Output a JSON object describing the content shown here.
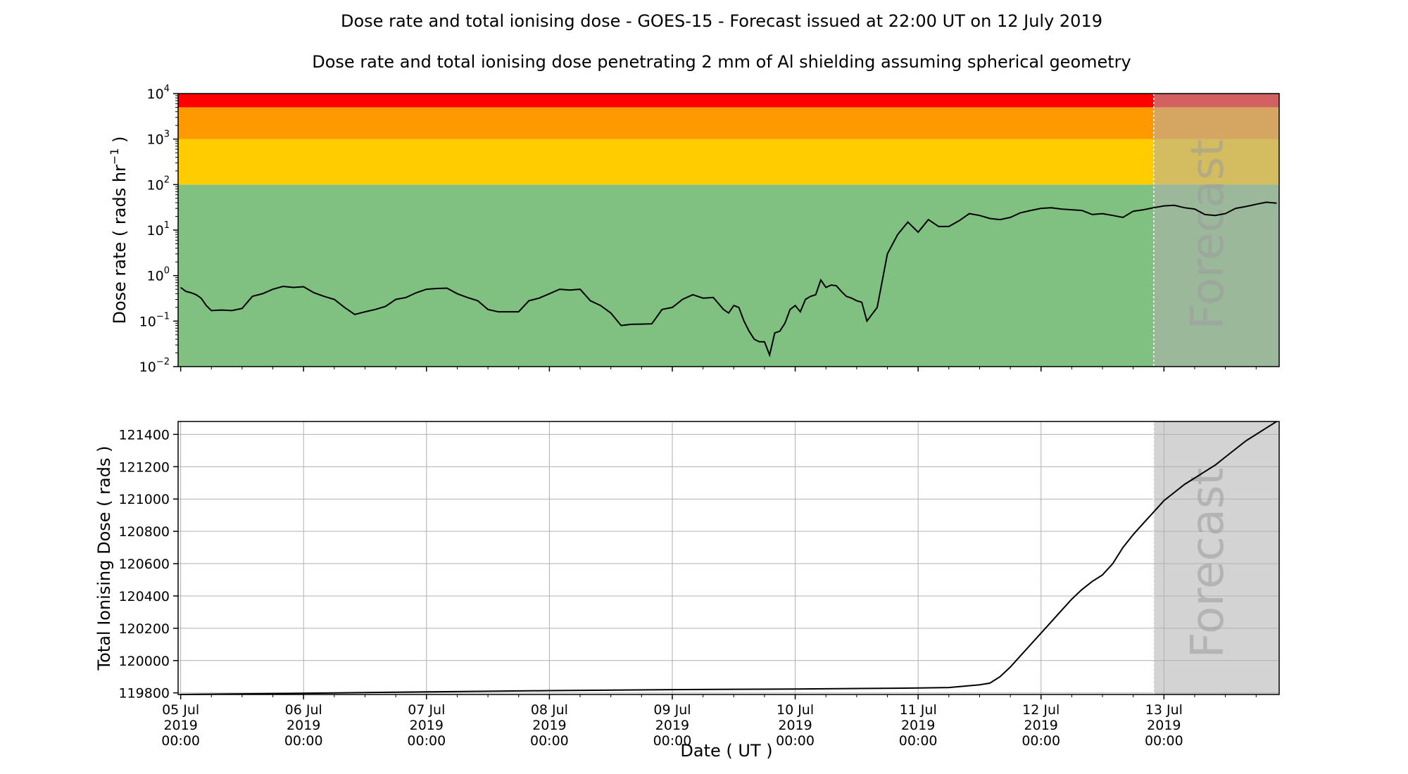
{
  "title": "Dose rate and total ionising dose - GOES-15 - Forecast issued at 22:00 UT on 12 July 2019",
  "subtitle": "Dose rate and total ionising dose penetrating 2 mm of Al shielding assuming spherical geometry",
  "forecast_label": "Forecast",
  "colors": {
    "green_band": "#80c080",
    "yellow_band": "#ffcc00",
    "orange_band": "#ff9900",
    "red_band": "#ff0000",
    "forecast_grey": "#d3d3d3",
    "line": "#000000",
    "grid": "#b0b0b0"
  },
  "chart_data": [
    {
      "type": "line",
      "name": "dose-rate",
      "ylabel_parts": [
        "Dose rate ( rads hr",
        "−1",
        " )"
      ],
      "yscale": "log",
      "ylim": [
        0.01,
        10000
      ],
      "yticks": [
        {
          "base": "10",
          "exp": "−2",
          "value": 0.01
        },
        {
          "base": "10",
          "exp": "−1",
          "value": 0.1
        },
        {
          "base": "10",
          "exp": "0",
          "value": 1
        },
        {
          "base": "10",
          "exp": "1",
          "value": 10
        },
        {
          "base": "10",
          "exp": "2",
          "value": 100
        },
        {
          "base": "10",
          "exp": "3",
          "value": 1000
        },
        {
          "base": "10",
          "exp": "4",
          "value": 10000
        }
      ],
      "bands": [
        {
          "from": 0.01,
          "to": 100,
          "color": "#80c080"
        },
        {
          "from": 100,
          "to": 1000,
          "color": "#ffcc00"
        },
        {
          "from": 1000,
          "to": 5000,
          "color": "#ff9900"
        },
        {
          "from": 5000,
          "to": 10000,
          "color": "#ff0000"
        }
      ],
      "x_hours_since_05jul": [
        0,
        1,
        2,
        3,
        4,
        5,
        6,
        8,
        10,
        12,
        14,
        16,
        18,
        20,
        22,
        24,
        26,
        28,
        30,
        32,
        34,
        36,
        38,
        40,
        42,
        44,
        46,
        48,
        50,
        52,
        54,
        56,
        58,
        60,
        62,
        64,
        66,
        68,
        70,
        72,
        74,
        76,
        78,
        80,
        82,
        84,
        86,
        88,
        90,
        92,
        94,
        96,
        98,
        100,
        102,
        104,
        106,
        107,
        108,
        109,
        110,
        111,
        112,
        113,
        114,
        115,
        116,
        117,
        118,
        119,
        120,
        121,
        122,
        123,
        124,
        125,
        126,
        127,
        128,
        129,
        130,
        131,
        132,
        133,
        134,
        136,
        138,
        140,
        142,
        144,
        146,
        148,
        150,
        152,
        154,
        156,
        158,
        160,
        162,
        164,
        166,
        168,
        170,
        172,
        174,
        176,
        178,
        180,
        182,
        184,
        186,
        188,
        190,
        192,
        194,
        196,
        198,
        200,
        202,
        204,
        206,
        208,
        210,
        212,
        214
      ],
      "values": [
        0.55,
        0.45,
        0.42,
        0.38,
        0.32,
        0.22,
        0.17,
        0.175,
        0.17,
        0.19,
        0.35,
        0.4,
        0.5,
        0.58,
        0.55,
        0.57,
        0.42,
        0.35,
        0.3,
        0.2,
        0.14,
        0.16,
        0.18,
        0.21,
        0.3,
        0.33,
        0.42,
        0.5,
        0.52,
        0.53,
        0.4,
        0.33,
        0.28,
        0.18,
        0.16,
        0.16,
        0.16,
        0.28,
        0.32,
        0.4,
        0.5,
        0.48,
        0.5,
        0.28,
        0.22,
        0.15,
        0.08,
        0.085,
        0.086,
        0.087,
        0.18,
        0.2,
        0.3,
        0.38,
        0.32,
        0.33,
        0.18,
        0.15,
        0.22,
        0.2,
        0.1,
        0.06,
        0.04,
        0.035,
        0.035,
        0.018,
        0.055,
        0.06,
        0.09,
        0.18,
        0.22,
        0.16,
        0.3,
        0.35,
        0.38,
        0.8,
        0.55,
        0.62,
        0.6,
        0.45,
        0.35,
        0.32,
        0.28,
        0.26,
        0.1,
        0.2,
        3.0,
        8.0,
        15.0,
        9.0,
        17.0,
        12.0,
        12.0,
        16.0,
        23.0,
        21.0,
        18.0,
        17.0,
        19.0,
        24.0,
        27.0,
        30.0,
        31.0,
        29.0,
        28.0,
        27.0,
        22.0,
        23.0,
        21.0,
        19.0,
        26.0,
        28.0,
        31.0,
        34.0,
        35.0,
        31.0,
        29.0,
        22.0,
        21.0,
        23.0,
        30.0,
        33.0,
        37.0,
        41.0,
        39.0
      ]
    },
    {
      "type": "line",
      "name": "total-ionising-dose",
      "ylabel": "Total Ionising Dose ( rads )",
      "xlabel": "Date ( UT )",
      "ylim": [
        119790,
        121480
      ],
      "yticks": [
        119800,
        120000,
        120200,
        120400,
        120600,
        120800,
        121000,
        121200,
        121400
      ],
      "ytick_labels": [
        "119800",
        "120000",
        "120200",
        "120400",
        "120600",
        "120800",
        "121000",
        "121200",
        "121400"
      ],
      "x_hours_since_05jul": [
        0,
        24,
        48,
        72,
        96,
        120,
        132,
        144,
        150,
        156,
        158,
        160,
        162,
        164,
        166,
        168,
        170,
        172,
        174,
        176,
        178,
        180,
        182,
        184,
        186,
        188,
        190,
        192,
        194,
        196,
        198,
        200,
        202,
        204,
        206,
        208,
        210,
        212,
        214
      ],
      "values": [
        119790,
        119798,
        119806,
        119814,
        119820,
        119824,
        119827,
        119830,
        119833,
        119850,
        119860,
        119900,
        119960,
        120030,
        120100,
        120170,
        120240,
        120310,
        120380,
        120440,
        120490,
        120530,
        120600,
        120700,
        120780,
        120850,
        120920,
        120990,
        121040,
        121090,
        121130,
        121170,
        121210,
        121260,
        121310,
        121360,
        121400,
        121440,
        121480
      ]
    }
  ],
  "x_axis": {
    "range_hours": [
      -0.5,
      214.5
    ],
    "forecast_start_hours": 190,
    "ticks": [
      {
        "hours": 0,
        "date": "05 Jul",
        "year": "2019",
        "time": "00:00"
      },
      {
        "hours": 24,
        "date": "06 Jul",
        "year": "2019",
        "time": "00:00"
      },
      {
        "hours": 48,
        "date": "07 Jul",
        "year": "2019",
        "time": "00:00"
      },
      {
        "hours": 72,
        "date": "08 Jul",
        "year": "2019",
        "time": "00:00"
      },
      {
        "hours": 96,
        "date": "09 Jul",
        "year": "2019",
        "time": "00:00"
      },
      {
        "hours": 120,
        "date": "10 Jul",
        "year": "2019",
        "time": "00:00"
      },
      {
        "hours": 144,
        "date": "11 Jul",
        "year": "2019",
        "time": "00:00"
      },
      {
        "hours": 168,
        "date": "12 Jul",
        "year": "2019",
        "time": "00:00"
      },
      {
        "hours": 192,
        "date": "13 Jul",
        "year": "2019",
        "time": "00:00"
      }
    ]
  }
}
